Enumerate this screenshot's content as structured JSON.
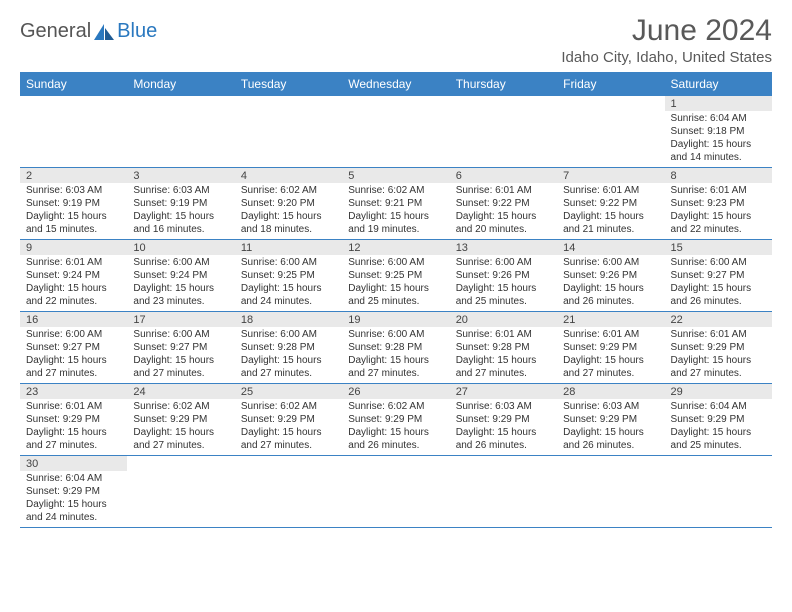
{
  "brand": {
    "main": "General",
    "sub": "Blue"
  },
  "title": "June 2024",
  "location": "Idaho City, Idaho, United States",
  "colors": {
    "header_bg": "#3b82c4",
    "header_text": "#ffffff",
    "daynum_bg": "#e9e9e9",
    "row_border": "#3b82c4",
    "title_color": "#595959",
    "brand_main": "#555555",
    "brand_sub": "#2a78bf"
  },
  "typography": {
    "title_fontsize_pt": 22,
    "location_fontsize_pt": 11,
    "dayhead_fontsize_pt": 9,
    "cell_fontsize_pt": 7.5
  },
  "dayHeaders": [
    "Sunday",
    "Monday",
    "Tuesday",
    "Wednesday",
    "Thursday",
    "Friday",
    "Saturday"
  ],
  "weeks": [
    [
      null,
      null,
      null,
      null,
      null,
      null,
      {
        "n": "1",
        "sunrise": "6:04 AM",
        "sunset": "9:18 PM",
        "daylight": "15 hours and 14 minutes."
      }
    ],
    [
      {
        "n": "2",
        "sunrise": "6:03 AM",
        "sunset": "9:19 PM",
        "daylight": "15 hours and 15 minutes."
      },
      {
        "n": "3",
        "sunrise": "6:03 AM",
        "sunset": "9:19 PM",
        "daylight": "15 hours and 16 minutes."
      },
      {
        "n": "4",
        "sunrise": "6:02 AM",
        "sunset": "9:20 PM",
        "daylight": "15 hours and 18 minutes."
      },
      {
        "n": "5",
        "sunrise": "6:02 AM",
        "sunset": "9:21 PM",
        "daylight": "15 hours and 19 minutes."
      },
      {
        "n": "6",
        "sunrise": "6:01 AM",
        "sunset": "9:22 PM",
        "daylight": "15 hours and 20 minutes."
      },
      {
        "n": "7",
        "sunrise": "6:01 AM",
        "sunset": "9:22 PM",
        "daylight": "15 hours and 21 minutes."
      },
      {
        "n": "8",
        "sunrise": "6:01 AM",
        "sunset": "9:23 PM",
        "daylight": "15 hours and 22 minutes."
      }
    ],
    [
      {
        "n": "9",
        "sunrise": "6:01 AM",
        "sunset": "9:24 PM",
        "daylight": "15 hours and 22 minutes."
      },
      {
        "n": "10",
        "sunrise": "6:00 AM",
        "sunset": "9:24 PM",
        "daylight": "15 hours and 23 minutes."
      },
      {
        "n": "11",
        "sunrise": "6:00 AM",
        "sunset": "9:25 PM",
        "daylight": "15 hours and 24 minutes."
      },
      {
        "n": "12",
        "sunrise": "6:00 AM",
        "sunset": "9:25 PM",
        "daylight": "15 hours and 25 minutes."
      },
      {
        "n": "13",
        "sunrise": "6:00 AM",
        "sunset": "9:26 PM",
        "daylight": "15 hours and 25 minutes."
      },
      {
        "n": "14",
        "sunrise": "6:00 AM",
        "sunset": "9:26 PM",
        "daylight": "15 hours and 26 minutes."
      },
      {
        "n": "15",
        "sunrise": "6:00 AM",
        "sunset": "9:27 PM",
        "daylight": "15 hours and 26 minutes."
      }
    ],
    [
      {
        "n": "16",
        "sunrise": "6:00 AM",
        "sunset": "9:27 PM",
        "daylight": "15 hours and 27 minutes."
      },
      {
        "n": "17",
        "sunrise": "6:00 AM",
        "sunset": "9:27 PM",
        "daylight": "15 hours and 27 minutes."
      },
      {
        "n": "18",
        "sunrise": "6:00 AM",
        "sunset": "9:28 PM",
        "daylight": "15 hours and 27 minutes."
      },
      {
        "n": "19",
        "sunrise": "6:00 AM",
        "sunset": "9:28 PM",
        "daylight": "15 hours and 27 minutes."
      },
      {
        "n": "20",
        "sunrise": "6:01 AM",
        "sunset": "9:28 PM",
        "daylight": "15 hours and 27 minutes."
      },
      {
        "n": "21",
        "sunrise": "6:01 AM",
        "sunset": "9:29 PM",
        "daylight": "15 hours and 27 minutes."
      },
      {
        "n": "22",
        "sunrise": "6:01 AM",
        "sunset": "9:29 PM",
        "daylight": "15 hours and 27 minutes."
      }
    ],
    [
      {
        "n": "23",
        "sunrise": "6:01 AM",
        "sunset": "9:29 PM",
        "daylight": "15 hours and 27 minutes."
      },
      {
        "n": "24",
        "sunrise": "6:02 AM",
        "sunset": "9:29 PM",
        "daylight": "15 hours and 27 minutes."
      },
      {
        "n": "25",
        "sunrise": "6:02 AM",
        "sunset": "9:29 PM",
        "daylight": "15 hours and 27 minutes."
      },
      {
        "n": "26",
        "sunrise": "6:02 AM",
        "sunset": "9:29 PM",
        "daylight": "15 hours and 26 minutes."
      },
      {
        "n": "27",
        "sunrise": "6:03 AM",
        "sunset": "9:29 PM",
        "daylight": "15 hours and 26 minutes."
      },
      {
        "n": "28",
        "sunrise": "6:03 AM",
        "sunset": "9:29 PM",
        "daylight": "15 hours and 26 minutes."
      },
      {
        "n": "29",
        "sunrise": "6:04 AM",
        "sunset": "9:29 PM",
        "daylight": "15 hours and 25 minutes."
      }
    ],
    [
      {
        "n": "30",
        "sunrise": "6:04 AM",
        "sunset": "9:29 PM",
        "daylight": "15 hours and 24 minutes."
      },
      null,
      null,
      null,
      null,
      null,
      null
    ]
  ],
  "labels": {
    "sunrise": "Sunrise:",
    "sunset": "Sunset:",
    "daylight": "Daylight:"
  }
}
